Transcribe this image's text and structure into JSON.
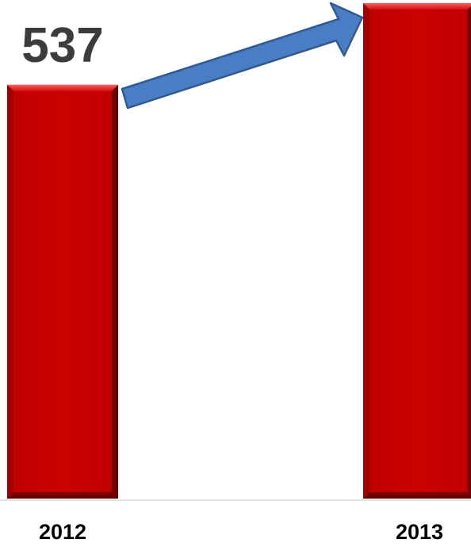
{
  "chart_data": {
    "type": "bar",
    "categories": [
      "2012",
      "2013"
    ],
    "values": [
      537,
      643
    ],
    "data_labels": [
      "537",
      ""
    ],
    "title": "",
    "xlabel": "",
    "ylabel": "",
    "ylim": [
      0,
      643
    ],
    "grid": false,
    "legend": "none",
    "colors": {
      "bar": "#c80000",
      "bar_light": "#e52222",
      "bar_dark": "#7a0000",
      "arrow": "#4a7ec4",
      "arrow_stroke": "#2f5a92",
      "baseline": "#d9d9d9"
    },
    "annotation_icon": "up-right-arrow-icon"
  }
}
